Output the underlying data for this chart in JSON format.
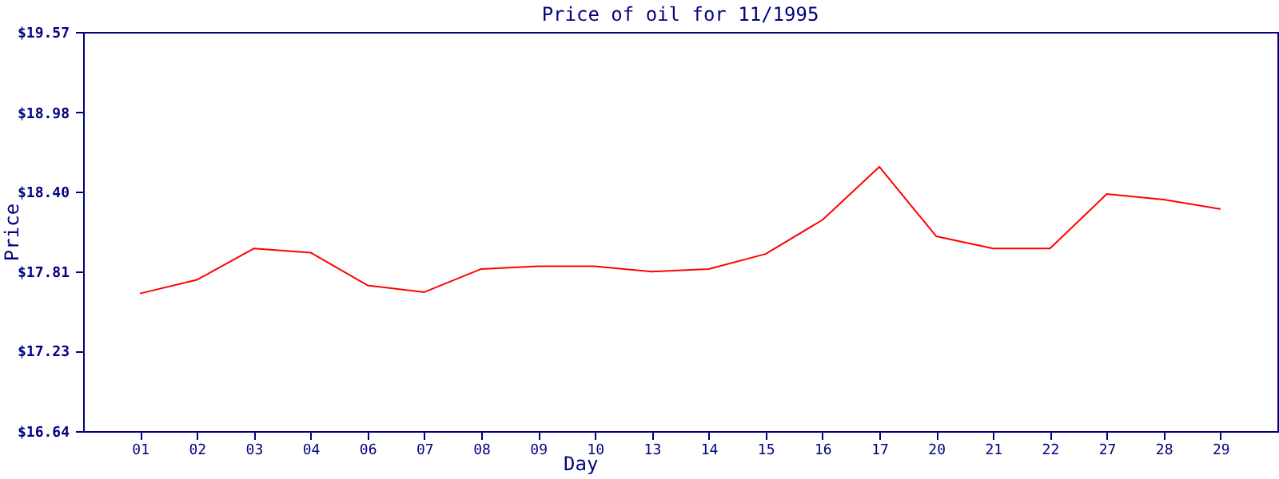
{
  "chart_data": {
    "type": "line",
    "title": "Price of oil for 11/1995",
    "xlabel": "Day",
    "ylabel": "Price",
    "categories": [
      "01",
      "02",
      "03",
      "04",
      "06",
      "07",
      "08",
      "09",
      "10",
      "13",
      "14",
      "15",
      "16",
      "17",
      "20",
      "21",
      "22",
      "27",
      "28",
      "29"
    ],
    "series": [
      {
        "color": "#ff0000",
        "values": [
          17.65,
          17.75,
          17.98,
          17.95,
          17.71,
          17.66,
          17.83,
          17.85,
          17.85,
          17.81,
          17.83,
          17.94,
          18.19,
          18.58,
          18.07,
          17.98,
          17.98,
          18.38,
          18.34,
          18.27
        ]
      }
    ],
    "ylim": [
      16.64,
      19.57
    ],
    "yticks": [
      {
        "value": 16.64,
        "label": "$16.64"
      },
      {
        "value": 17.23,
        "label": "$17.23"
      },
      {
        "value": 17.81,
        "label": "$17.81"
      },
      {
        "value": 18.4,
        "label": "$18.40"
      },
      {
        "value": 18.98,
        "label": "$18.98"
      },
      {
        "value": 19.57,
        "label": "$19.57"
      }
    ],
    "grid": false,
    "marker": "none",
    "line_style": "solid"
  }
}
